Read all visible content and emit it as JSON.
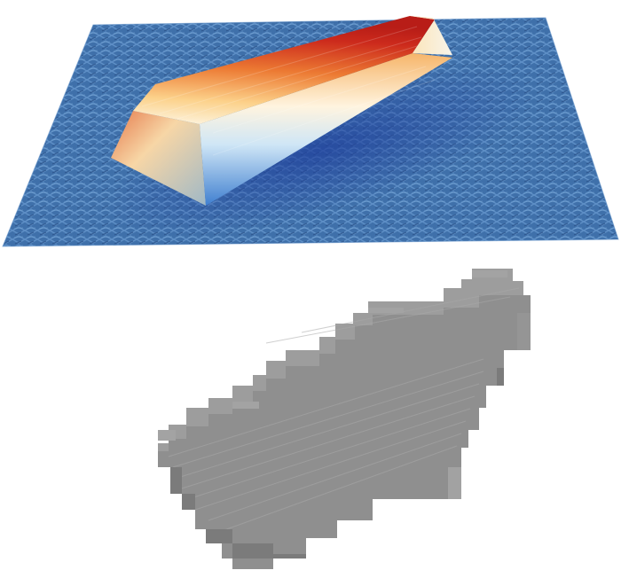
{
  "figure": {
    "top_panel": {
      "kind": "3d-height-surface-render",
      "colormap": [
        "#2f5f9e",
        "#6aa6db",
        "#f4f8fb",
        "#fdd79a",
        "#f08c3b",
        "#c8241d"
      ],
      "background_color": "#ffffff",
      "plane_color": "#3d6ea8"
    },
    "bottom_panel": {
      "kind": "3d-voxel-render",
      "voxel_color": "#8e8e8e"
    }
  }
}
